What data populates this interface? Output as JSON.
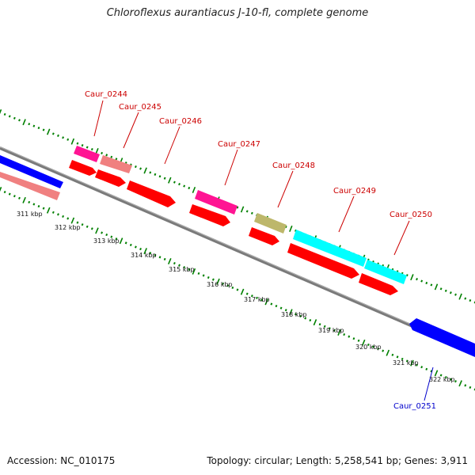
{
  "title": "Chloroflexus aurantiacus J-10-fl, complete genome",
  "accession": "Accession: NC_010175",
  "summary": "Topology: circular; Length: 5,258,541 bp; Genes: 3,911",
  "colors": {
    "backbone": "#808080",
    "tick": "#008000",
    "label_forward": "#cc0000",
    "label_reverse": "#0000cc",
    "red": "#ff0000",
    "pink": "#ff1493",
    "salmon": "#f08080",
    "olive": "#bdb76b",
    "cyan": "#00ffff",
    "blue": "#0000ff"
  },
  "scale_labels": [
    "311 kbp",
    "312 kbp",
    "313 kbp",
    "314 kbp",
    "315 kbp",
    "316 kbp",
    "317 kbp",
    "318 kbp",
    "319 kbp",
    "320 kbp",
    "321 kbp",
    "322 kbp"
  ],
  "gene_labels": [
    {
      "name": "Caur_0244",
      "strand": "forward"
    },
    {
      "name": "Caur_0245",
      "strand": "forward"
    },
    {
      "name": "Caur_0246",
      "strand": "forward"
    },
    {
      "name": "Caur_0247",
      "strand": "forward"
    },
    {
      "name": "Caur_0248",
      "strand": "forward"
    },
    {
      "name": "Caur_0249",
      "strand": "forward"
    },
    {
      "name": "Caur_0250",
      "strand": "forward"
    },
    {
      "name": "Caur_0251",
      "strand": "reverse"
    }
  ]
}
